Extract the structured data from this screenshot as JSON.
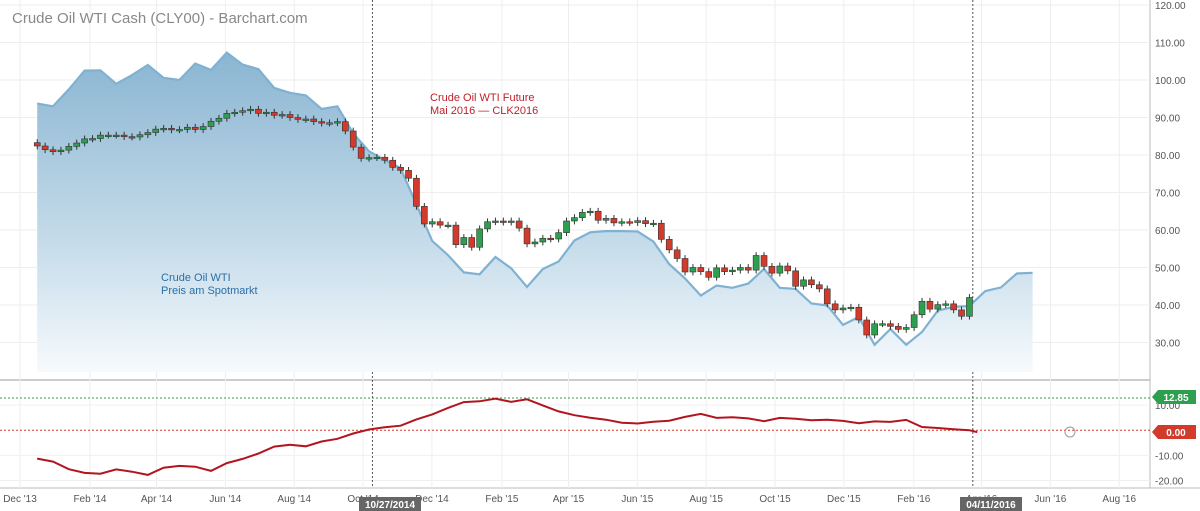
{
  "title": "Crude Oil WTI Cash (CLY00) - Barchart.com",
  "annotations": {
    "future_line1": "Crude Oil WTI Future",
    "future_line2": "Mai 2016 — CLK2016",
    "spot_line1": "Crude Oil WTI",
    "spot_line2": "Preis am Spotmarkt"
  },
  "markers": {
    "start": "10/27/2014",
    "end": "04/11/2016"
  },
  "last_values": {
    "upper_line": "12.85",
    "spread": "0.00"
  },
  "colors": {
    "area_line": "#7fb1d2",
    "candle_up": "#2e9e4f",
    "candle_down": "#d23a2c",
    "spread_line": "#b3151f",
    "green_ref": "#2e9e4f",
    "red_ref": "#d23a2c"
  },
  "chart_data": [
    {
      "type": "area",
      "x_ticks": [
        "Dec '13",
        "Feb '14",
        "Apr '14",
        "Jun '14",
        "Aug '14",
        "Oct '14",
        "Dec '14",
        "Feb '15",
        "Apr '15",
        "Jun '15",
        "Aug '15",
        "Oct '15",
        "Dec '15",
        "Feb '16",
        "Apr '16",
        "Jun '16",
        "Aug '16"
      ],
      "y_ticks": [
        "120.00",
        "110.00",
        "100.00",
        "90.00",
        "80.00",
        "70.00",
        "60.00",
        "50.00",
        "40.00",
        "30.00"
      ],
      "ylim": [
        20,
        120
      ],
      "grid": true,
      "spot_series": {
        "name": "Crude Oil WTI Preis am Spotmarkt",
        "x": [
          "2014-01-03",
          "2014-01-17",
          "2014-01-31",
          "2014-02-14",
          "2014-02-28",
          "2014-03-14",
          "2014-03-28",
          "2014-04-11",
          "2014-04-25",
          "2014-05-09",
          "2014-05-23",
          "2014-06-06",
          "2014-06-20",
          "2014-07-04",
          "2014-07-18",
          "2014-08-01",
          "2014-08-15",
          "2014-08-29",
          "2014-09-12",
          "2014-09-26",
          "2014-10-10",
          "2014-10-24",
          "2014-11-07",
          "2014-11-21",
          "2014-12-05",
          "2014-12-19",
          "2015-01-02",
          "2015-01-16",
          "2015-01-30",
          "2015-02-13",
          "2015-02-27",
          "2015-03-13",
          "2015-03-27",
          "2015-04-10",
          "2015-04-24",
          "2015-05-08",
          "2015-05-22",
          "2015-06-05",
          "2015-06-19",
          "2015-07-03",
          "2015-07-17",
          "2015-07-31",
          "2015-08-14",
          "2015-08-28",
          "2015-09-11",
          "2015-09-25",
          "2015-10-09",
          "2015-10-23",
          "2015-11-06",
          "2015-11-20",
          "2015-12-04",
          "2015-12-18",
          "2016-01-01",
          "2016-01-15",
          "2016-01-29",
          "2016-02-12",
          "2016-02-26",
          "2016-03-11",
          "2016-03-25",
          "2016-04-08",
          "2016-04-22",
          "2016-05-06",
          "2016-05-20",
          "2016-06-03"
        ],
        "values": [
          93.7,
          93.0,
          97.5,
          102.5,
          102.6,
          99.0,
          101.3,
          104.0,
          100.6,
          100.0,
          104.4,
          102.7,
          107.3,
          104.1,
          102.9,
          97.9,
          96.6,
          95.9,
          92.3,
          93.0,
          85.8,
          81.0,
          78.7,
          76.5,
          66.8,
          57.1,
          53.3,
          48.7,
          48.2,
          52.8,
          49.8,
          44.8,
          49.6,
          51.6,
          57.2,
          59.4,
          59.7,
          59.7,
          59.6,
          56.9,
          50.9,
          47.1,
          42.5,
          45.2,
          44.6,
          45.7,
          49.6,
          44.6,
          44.3,
          40.4,
          39.9,
          34.7,
          36.8,
          29.4,
          33.6,
          29.4,
          32.8,
          38.5,
          39.5,
          39.7,
          43.7,
          44.7,
          48.4,
          48.6
        ]
      },
      "future_candles": {
        "name": "Crude Oil WTI Future Mai 2016 — CLK2016",
        "x": [
          "2014-01-03",
          "2014-01-10",
          "2014-01-17",
          "2014-01-24",
          "2014-01-31",
          "2014-02-07",
          "2014-02-14",
          "2014-02-21",
          "2014-02-28",
          "2014-03-07",
          "2014-03-14",
          "2014-03-21",
          "2014-03-28",
          "2014-04-04",
          "2014-04-11",
          "2014-04-18",
          "2014-04-25",
          "2014-05-02",
          "2014-05-09",
          "2014-05-16",
          "2014-05-23",
          "2014-05-30",
          "2014-06-06",
          "2014-06-13",
          "2014-06-20",
          "2014-06-27",
          "2014-07-04",
          "2014-07-11",
          "2014-07-18",
          "2014-07-25",
          "2014-08-01",
          "2014-08-08",
          "2014-08-15",
          "2014-08-22",
          "2014-08-29",
          "2014-09-05",
          "2014-09-12",
          "2014-09-19",
          "2014-09-26",
          "2014-10-03",
          "2014-10-10",
          "2014-10-17",
          "2014-10-24",
          "2014-10-31",
          "2014-11-07",
          "2014-11-14",
          "2014-11-21",
          "2014-11-28",
          "2014-12-05",
          "2014-12-12",
          "2014-12-19",
          "2014-12-26",
          "2015-01-02",
          "2015-01-09",
          "2015-01-16",
          "2015-01-23",
          "2015-01-30",
          "2015-02-06",
          "2015-02-13",
          "2015-02-20",
          "2015-02-27",
          "2015-03-06",
          "2015-03-13",
          "2015-03-20",
          "2015-03-27",
          "2015-04-03",
          "2015-04-10",
          "2015-04-17",
          "2015-04-24",
          "2015-05-01",
          "2015-05-08",
          "2015-05-15",
          "2015-05-22",
          "2015-05-29",
          "2015-06-05",
          "2015-06-12",
          "2015-06-19",
          "2015-06-26",
          "2015-07-03",
          "2015-07-10",
          "2015-07-17",
          "2015-07-24",
          "2015-07-31",
          "2015-08-07",
          "2015-08-14",
          "2015-08-21",
          "2015-08-28",
          "2015-09-04",
          "2015-09-11",
          "2015-09-18",
          "2015-09-25",
          "2015-10-02",
          "2015-10-09",
          "2015-10-16",
          "2015-10-23",
          "2015-10-30",
          "2015-11-06",
          "2015-11-13",
          "2015-11-20",
          "2015-11-27",
          "2015-12-04",
          "2015-12-11",
          "2015-12-18",
          "2015-12-25",
          "2016-01-01",
          "2016-01-08",
          "2016-01-15",
          "2016-01-22",
          "2016-01-29",
          "2016-02-05",
          "2016-02-12",
          "2016-02-19",
          "2016-02-26",
          "2016-03-04",
          "2016-03-11",
          "2016-03-18",
          "2016-03-25",
          "2016-04-01",
          "2016-04-08"
        ],
        "open": [
          83.3,
          82.4,
          81.4,
          80.9,
          81.3,
          82.3,
          83.2,
          84.3,
          84.4,
          85.3,
          85.3,
          85.3,
          84.9,
          84.8,
          85.4,
          86.0,
          86.9,
          87.1,
          86.7,
          86.8,
          87.4,
          86.8,
          87.6,
          89.0,
          89.8,
          91.1,
          91.4,
          91.8,
          92.2,
          91.1,
          91.4,
          90.6,
          90.8,
          90.0,
          89.5,
          89.6,
          88.9,
          88.5,
          88.6,
          88.9,
          86.4,
          82.1,
          79.1,
          79.3,
          79.4,
          78.6,
          76.7,
          75.9,
          73.8,
          66.3,
          61.6,
          62.2,
          61.3,
          61.3,
          56.1,
          58.0,
          55.4,
          60.3,
          62.2,
          62.4,
          62.1,
          62.4,
          60.5,
          56.3,
          56.8,
          57.8,
          57.6,
          59.3,
          62.4,
          63.3,
          64.7,
          65.0,
          62.6,
          63.1,
          61.9,
          62.2,
          62.0,
          62.5,
          61.7,
          61.8,
          57.5,
          54.7,
          52.4,
          48.8,
          50.0,
          48.9,
          47.4,
          49.9,
          48.9,
          49.3,
          50.0,
          49.3,
          53.2,
          50.3,
          48.5,
          50.4,
          49.1,
          45.0,
          46.7,
          45.4,
          44.3,
          40.3,
          38.7,
          39.2,
          39.4,
          36.0,
          32.0,
          35.0,
          35.0,
          34.3,
          33.5,
          34.0,
          37.4,
          41.0,
          38.9,
          40.1,
          40.3,
          38.7,
          37.0
        ],
        "close": [
          82.4,
          81.4,
          80.9,
          81.3,
          82.3,
          83.2,
          84.3,
          84.4,
          85.3,
          85.3,
          85.3,
          84.9,
          84.8,
          85.4,
          86.0,
          86.9,
          87.1,
          86.7,
          86.8,
          87.4,
          86.8,
          87.6,
          89.0,
          89.8,
          91.1,
          91.4,
          91.8,
          92.2,
          91.1,
          91.4,
          90.6,
          90.8,
          90.0,
          89.5,
          89.6,
          88.9,
          88.5,
          88.6,
          88.9,
          86.4,
          82.1,
          79.1,
          79.3,
          79.4,
          78.6,
          76.7,
          75.9,
          73.8,
          66.3,
          61.6,
          62.2,
          61.3,
          61.3,
          56.1,
          58.0,
          55.4,
          60.3,
          62.2,
          62.4,
          62.1,
          62.4,
          60.5,
          56.3,
          56.8,
          57.8,
          57.6,
          59.3,
          62.4,
          63.3,
          64.7,
          65.0,
          62.6,
          63.1,
          61.9,
          62.2,
          62.0,
          62.5,
          61.7,
          61.8,
          57.5,
          54.7,
          52.4,
          48.8,
          50.0,
          48.9,
          47.4,
          49.9,
          48.9,
          49.3,
          50.0,
          49.3,
          53.2,
          50.3,
          48.5,
          50.4,
          49.1,
          45.0,
          46.7,
          45.4,
          44.3,
          40.3,
          38.7,
          39.2,
          39.4,
          36.0,
          32.0,
          35.0,
          35.0,
          34.3,
          33.5,
          34.0,
          37.4,
          41.0,
          38.9,
          40.1,
          40.3,
          38.7,
          37.0,
          42.0
        ]
      }
    },
    {
      "type": "line",
      "y_ticks": [
        "10.00",
        "-10.00",
        "-20.00"
      ],
      "ylim": [
        -23,
        20
      ],
      "reference_lines": [
        12.85,
        0.0
      ],
      "spread_series": {
        "x": [
          "2014-01-03",
          "2014-01-17",
          "2014-01-31",
          "2014-02-14",
          "2014-02-28",
          "2014-03-14",
          "2014-03-28",
          "2014-04-11",
          "2014-04-25",
          "2014-05-09",
          "2014-05-23",
          "2014-06-06",
          "2014-06-20",
          "2014-07-04",
          "2014-07-18",
          "2014-08-01",
          "2014-08-15",
          "2014-08-29",
          "2014-09-12",
          "2014-09-26",
          "2014-10-10",
          "2014-10-24",
          "2014-11-07",
          "2014-11-21",
          "2014-12-05",
          "2014-12-19",
          "2015-01-02",
          "2015-01-16",
          "2015-01-30",
          "2015-02-13",
          "2015-02-27",
          "2015-03-13",
          "2015-03-27",
          "2015-04-10",
          "2015-04-24",
          "2015-05-08",
          "2015-05-22",
          "2015-06-05",
          "2015-06-19",
          "2015-07-03",
          "2015-07-17",
          "2015-07-31",
          "2015-08-14",
          "2015-08-28",
          "2015-09-11",
          "2015-09-25",
          "2015-10-09",
          "2015-10-23",
          "2015-11-06",
          "2015-11-20",
          "2015-12-04",
          "2015-12-18",
          "2016-01-01",
          "2016-01-15",
          "2016-01-29",
          "2016-02-12",
          "2016-02-26",
          "2016-03-11",
          "2016-03-25",
          "2016-04-08",
          "2016-04-15"
        ],
        "values": [
          -11.3,
          -12.5,
          -15.5,
          -17.0,
          -17.3,
          -15.6,
          -16.5,
          -17.8,
          -14.9,
          -14.2,
          -14.5,
          -16.2,
          -13.1,
          -11.4,
          -9.3,
          -6.5,
          -5.8,
          -6.4,
          -4.5,
          -3.4,
          -1.3,
          0.3,
          1.2,
          1.8,
          4.3,
          6.3,
          8.9,
          11.2,
          11.5,
          12.6,
          11.3,
          12.3,
          9.9,
          7.5,
          6.0,
          5.0,
          4.2,
          3.0,
          2.7,
          3.4,
          3.8,
          5.3,
          6.5,
          4.9,
          5.2,
          4.7,
          3.6,
          4.9,
          4.6,
          4.0,
          4.2,
          3.7,
          2.8,
          3.5,
          3.3,
          4.1,
          1.3,
          0.9,
          0.4,
          0.0,
          -0.8
        ]
      }
    }
  ]
}
